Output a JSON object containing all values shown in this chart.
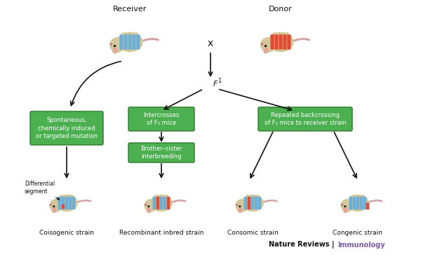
{
  "bg_color": "#ffffff",
  "mouse_body_color": "#d4c89a",
  "mouse_ear_color": "#e8a0a0",
  "mouse_nose_color": "#c08080",
  "mouse_tail_color": "#d4a0a0",
  "blue_stripe": "#6baed6",
  "red_stripe": "#e34a33",
  "green_box_color": "#4caf50",
  "green_box_edge": "#2d7a2d",
  "green_box_text": "#ffffff",
  "arrow_color": "#111111",
  "label_color": "#111111",
  "nature_reviews_color": "#111111",
  "immunology_color": "#7b5ea7",
  "title_receiver": "Receiver",
  "title_donor": "Donor",
  "label_f1": "F",
  "label_f1_sub": "1",
  "label_x": "x",
  "box1_text": "Spontaneous,\nchemically induced\nor targeted mutation",
  "box2_text": "Intercrosses\nof F₁ mice",
  "box3_text": "Repeated backcrossing\nof F₁ mice to receiver strain",
  "box4_text": "Brother–sister\ninterbreeding",
  "strain1": "Coisogenic strain",
  "strain2": "Recombinant inbred strain",
  "strain3": "Consomic strain",
  "strain4": "Congenic strain",
  "diff_segment_label": "Differential\nsegment",
  "nature_reviews_text": "Nature Reviews | Immunology"
}
